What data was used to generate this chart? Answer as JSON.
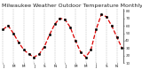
{
  "title": "Milwaukee Weather Outdoor Temperature Monthly High",
  "x": [
    0,
    1,
    2,
    3,
    4,
    5,
    6,
    7,
    8,
    9,
    10,
    11,
    12,
    13,
    14,
    15,
    16,
    17,
    18,
    19,
    20,
    21,
    22,
    23
  ],
  "y": [
    55,
    60,
    50,
    38,
    28,
    22,
    18,
    22,
    32,
    48,
    62,
    70,
    68,
    58,
    40,
    25,
    18,
    28,
    55,
    75,
    72,
    60,
    45,
    30
  ],
  "line_color": "#dd0000",
  "marker_color": "#000000",
  "background_color": "#ffffff",
  "grid_color": "#999999",
  "ylabel_color": "#333333",
  "ylim": [
    10,
    82
  ],
  "ytick_values": [
    10,
    20,
    30,
    40,
    50,
    60,
    70,
    80
  ],
  "ytick_labels": [
    "10",
    "20",
    "30",
    "40",
    "50",
    "60",
    "70",
    "80"
  ],
  "xlim": [
    -0.3,
    23.3
  ],
  "xtick_positions": [
    0,
    2,
    4,
    6,
    8,
    10,
    12,
    14,
    16,
    18,
    20,
    22
  ],
  "xtick_labels": [
    "J",
    "M",
    "M",
    "J",
    "S",
    "N",
    "J",
    "M",
    "M",
    "J",
    "S",
    "N"
  ],
  "title_fontsize": 4.5,
  "tick_fontsize": 3.0,
  "line_width": 0.9,
  "marker_size": 1.8,
  "vgrid_positions": [
    0,
    2,
    4,
    6,
    8,
    10,
    12,
    14,
    16,
    18,
    20,
    22
  ]
}
